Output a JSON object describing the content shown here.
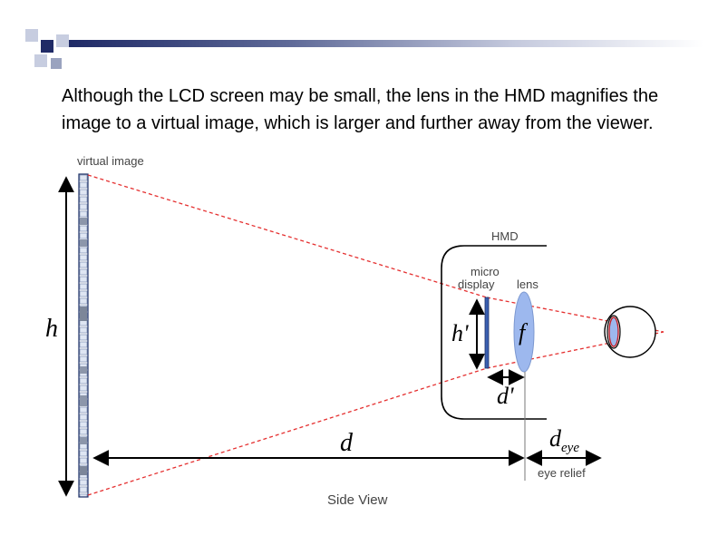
{
  "slide": {
    "text_lines": [
      "Although the LCD screen may be small, the lens in the HMD magnifies the",
      "image to a virtual image, which is larger and further away from the viewer."
    ]
  },
  "diagram": {
    "labels": {
      "virtual_image": "virtual image",
      "hmd": "HMD",
      "micro": "micro",
      "display": "display",
      "lens": "lens",
      "h": "h",
      "h_prime": "h'",
      "f": "f",
      "d_prime": "d'",
      "d": "d",
      "d_eye_base": "d",
      "d_eye_sub": "eye",
      "eye_relief": "eye relief",
      "side_view": "Side View"
    },
    "colors": {
      "ray_red": "#e53030",
      "lens_blue": "#9db8ee",
      "display_blue": "#3a5fb0",
      "accent_navy": "#1f2a66",
      "accent_gray": "#a9b3cf"
    }
  }
}
